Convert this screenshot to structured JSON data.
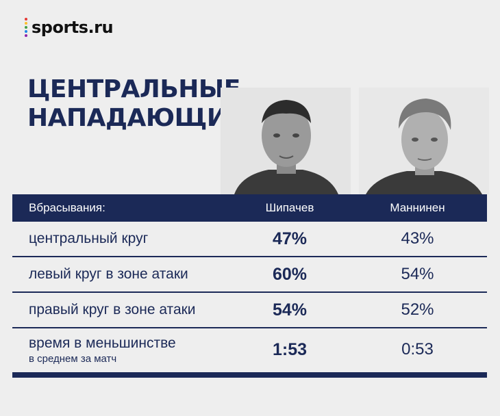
{
  "logo": {
    "text": "sports.ru",
    "bar_colors": [
      "#e53935",
      "#fbc02d",
      "#43a047",
      "#1e88e5",
      "#8e24aa"
    ]
  },
  "title": {
    "line1": "ЦЕНТРАЛЬНЫЕ",
    "line2": "НАПАДАЮЩИЕ"
  },
  "table": {
    "header": {
      "label": "Вбрасывания:",
      "player1": "Шипачев",
      "player2": "Маннинен"
    },
    "rows": [
      {
        "label": "центральный круг",
        "sub": "",
        "p1": "47%",
        "p2": "43%"
      },
      {
        "label": "левый круг в зоне атаки",
        "sub": "",
        "p1": "60%",
        "p2": "54%"
      },
      {
        "label": "правый круг в зоне атаки",
        "sub": "",
        "p1": "54%",
        "p2": "52%"
      },
      {
        "label": "время в меньшинстве",
        "sub": "в среднем за матч",
        "p1": "1:53",
        "p2": "0:53"
      }
    ]
  },
  "colors": {
    "navy": "#1b2957",
    "background": "#eeeeee"
  }
}
